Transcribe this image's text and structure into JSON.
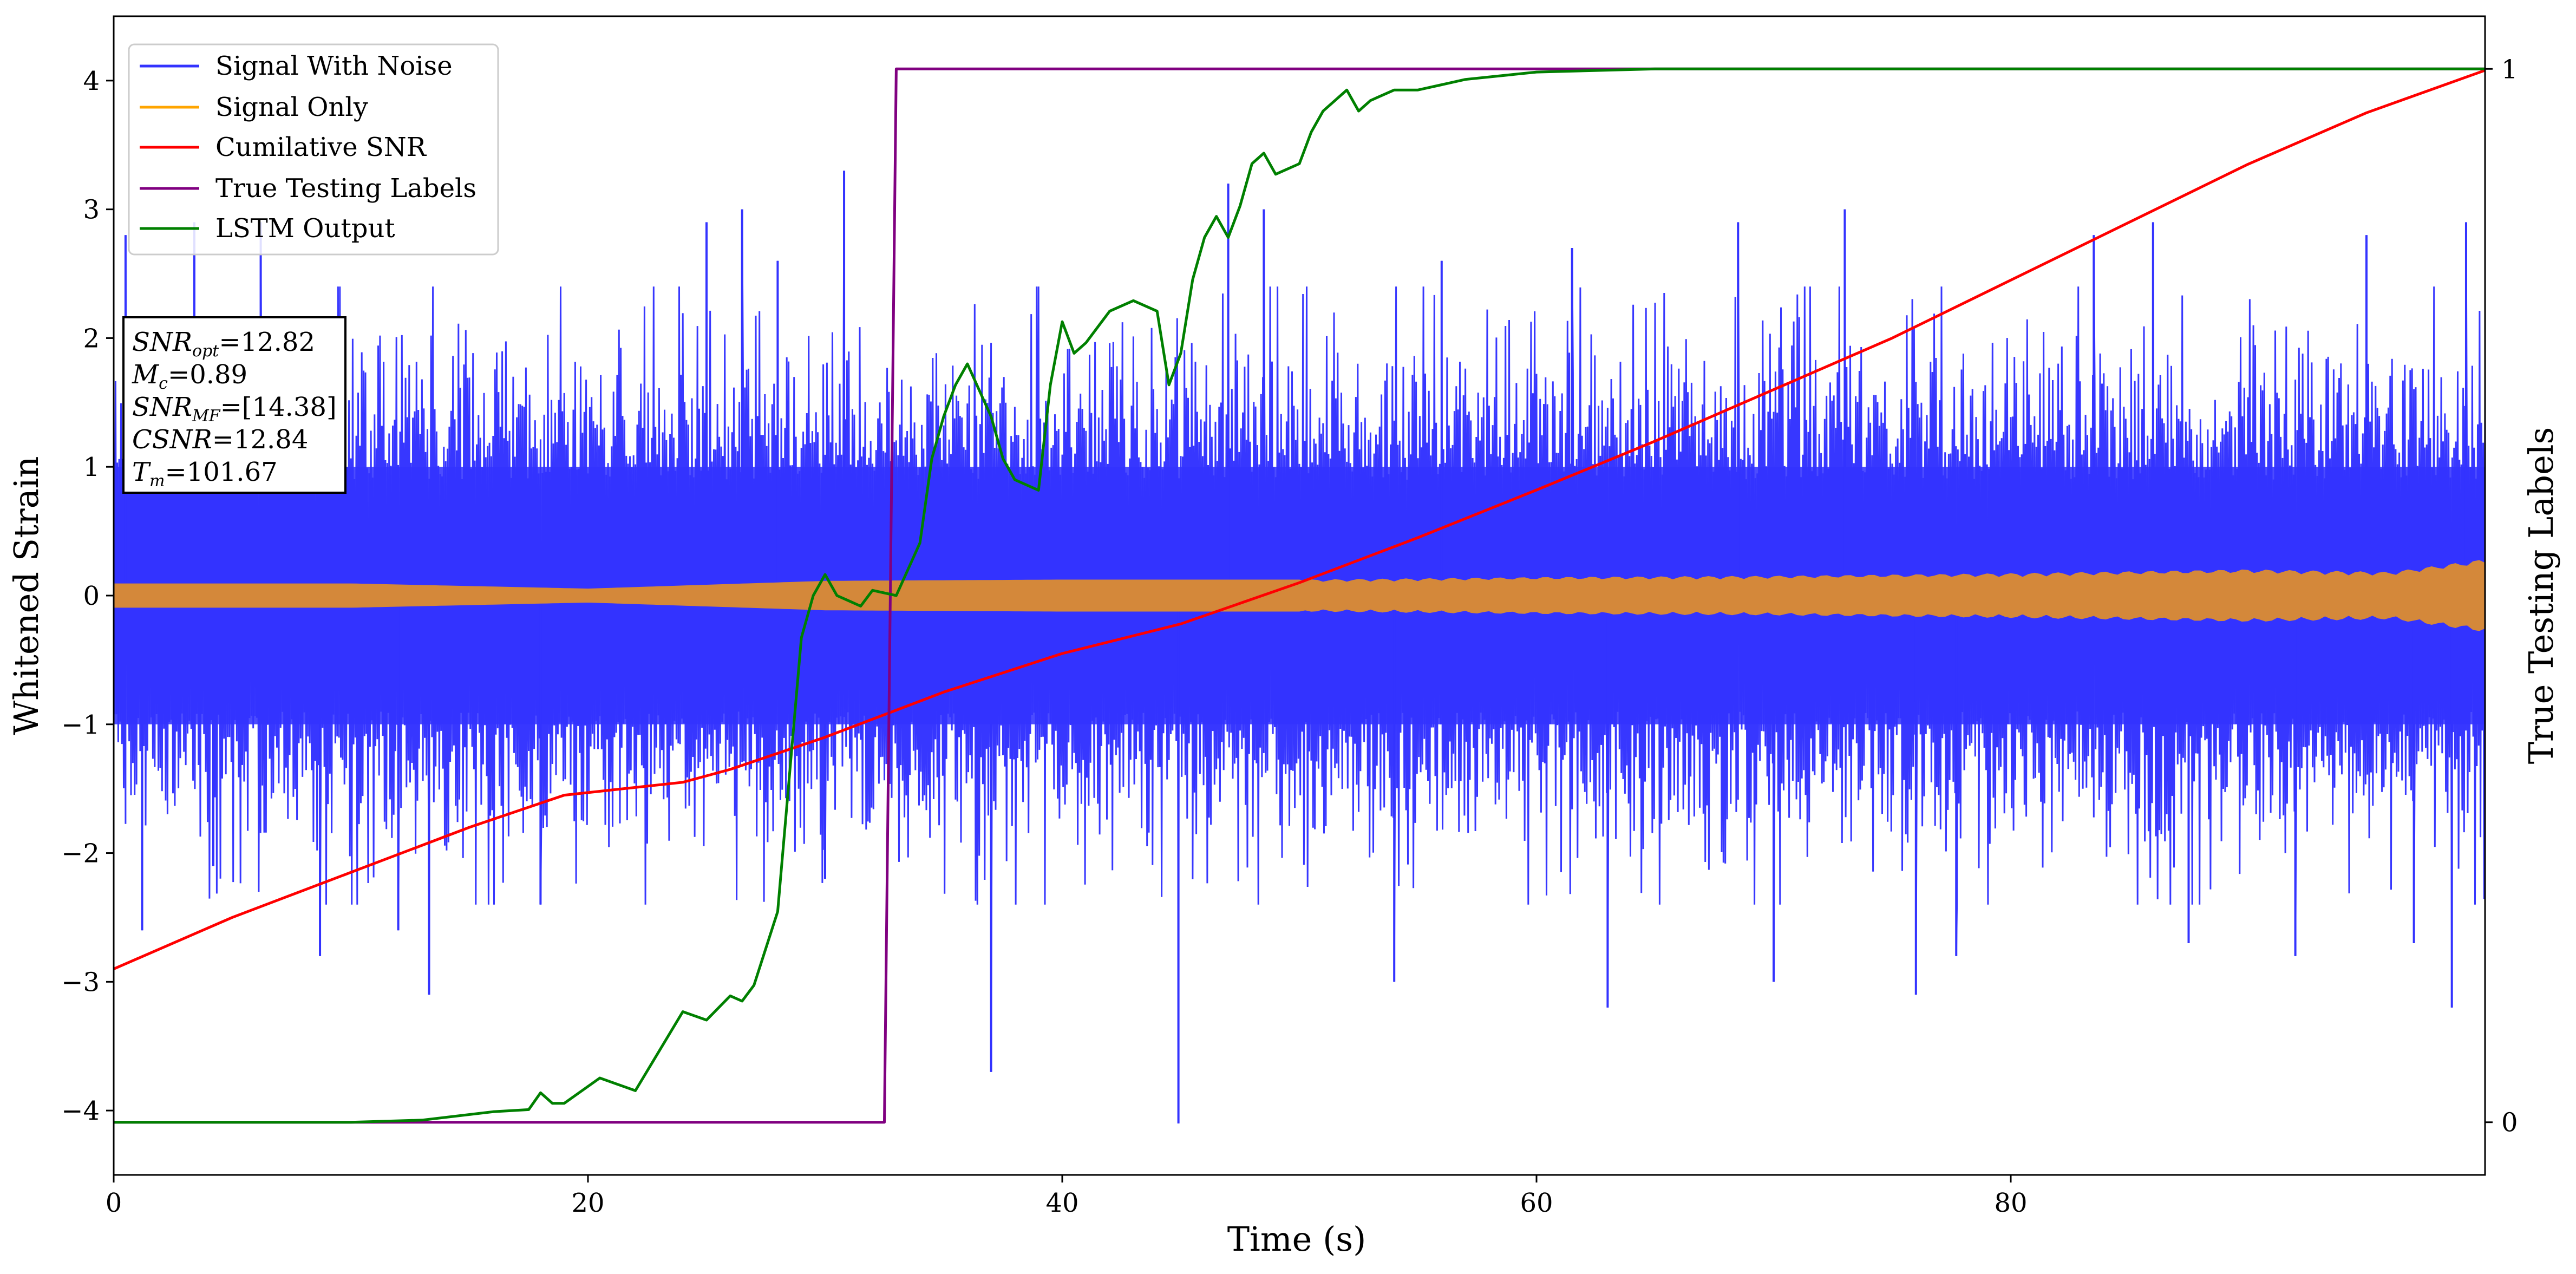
{
  "chart_data": {
    "type": "line",
    "xlabel": "Time (s)",
    "ylabel": "Whitened Strain",
    "y2label": "True Testing Labels",
    "xlim": [
      0,
      100
    ],
    "ylim": [
      -4.5,
      4.5
    ],
    "y2lim": [
      -0.05,
      1.05
    ],
    "x_ticks": [
      0,
      20,
      40,
      60,
      80
    ],
    "y_ticks": [
      -4,
      -3,
      -2,
      -1,
      0,
      1,
      2,
      3,
      4
    ],
    "y_tick_labels": [
      "−4",
      "−3",
      "−2",
      "−1",
      "0",
      "1",
      "2",
      "3",
      "4"
    ],
    "y2_ticks": [
      0,
      1
    ],
    "legend_position": "top-left",
    "series": [
      {
        "name": "Signal With Noise",
        "color": "#3333ff",
        "axis": "left",
        "style": "dense-noise",
        "typical_range": [
          -1.5,
          1.5
        ],
        "peaks": [
          {
            "x": 0.5,
            "y": 2.8
          },
          {
            "x": 1.2,
            "y": -2.6
          },
          {
            "x": 3.4,
            "y": 2.9
          },
          {
            "x": 4.2,
            "y": -2.1
          },
          {
            "x": 6.2,
            "y": 2.9
          },
          {
            "x": 8.7,
            "y": -2.8
          },
          {
            "x": 12.0,
            "y": -2.6
          },
          {
            "x": 13.3,
            "y": -3.1
          },
          {
            "x": 18.0,
            "y": -2.4
          },
          {
            "x": 25.0,
            "y": 2.9
          },
          {
            "x": 26.5,
            "y": 3.0
          },
          {
            "x": 28.0,
            "y": 2.6
          },
          {
            "x": 30.0,
            "y": -2.2
          },
          {
            "x": 30.8,
            "y": 3.3
          },
          {
            "x": 37.0,
            "y": -3.7
          },
          {
            "x": 44.9,
            "y": -4.1
          },
          {
            "x": 47.0,
            "y": 3.2
          },
          {
            "x": 48.5,
            "y": 3.0
          },
          {
            "x": 54.0,
            "y": -3.0
          },
          {
            "x": 56.0,
            "y": 2.6
          },
          {
            "x": 61.5,
            "y": 2.7
          },
          {
            "x": 63.0,
            "y": -3.2
          },
          {
            "x": 68.5,
            "y": 2.9
          },
          {
            "x": 70.0,
            "y": -3.0
          },
          {
            "x": 73.0,
            "y": 3.0
          },
          {
            "x": 76.0,
            "y": -3.1
          },
          {
            "x": 77.7,
            "y": -2.8
          },
          {
            "x": 83.5,
            "y": 2.8
          },
          {
            "x": 86.0,
            "y": 2.9
          },
          {
            "x": 87.5,
            "y": -2.7
          },
          {
            "x": 92.0,
            "y": -2.8
          },
          {
            "x": 95.0,
            "y": 2.8
          },
          {
            "x": 97.0,
            "y": -2.7
          },
          {
            "x": 98.6,
            "y": -3.2
          },
          {
            "x": 99.2,
            "y": 2.9
          }
        ]
      },
      {
        "name": "Signal Only",
        "color": "#d4883a",
        "axis": "left",
        "style": "chirp-band",
        "amplitude_envelope": {
          "x": [
            0,
            10,
            20,
            30,
            40,
            50,
            60,
            70,
            80,
            90,
            96,
            100
          ],
          "y": [
            0.09,
            0.09,
            0.05,
            0.11,
            0.12,
            0.12,
            0.14,
            0.15,
            0.17,
            0.2,
            0.18,
            0.28
          ]
        }
      },
      {
        "name": "Cumilative SNR",
        "color": "#ff0000",
        "axis": "left",
        "x": [
          0,
          5,
          10,
          15,
          19,
          24,
          26,
          30,
          35,
          40,
          45,
          50,
          55,
          60,
          65,
          70,
          75,
          80,
          85,
          90,
          95,
          100
        ],
        "y": [
          -2.9,
          -2.5,
          -2.15,
          -1.8,
          -1.55,
          -1.45,
          -1.35,
          -1.1,
          -0.75,
          -0.45,
          -0.22,
          0.1,
          0.45,
          0.82,
          1.2,
          1.6,
          2.0,
          2.45,
          2.9,
          3.35,
          3.75,
          4.08
        ]
      },
      {
        "name": "True Testing Labels",
        "color": "#800080",
        "axis": "right",
        "x": [
          0,
          32.5,
          33.0,
          100
        ],
        "y": [
          0,
          0,
          1,
          1
        ]
      },
      {
        "name": "LSTM Output",
        "color": "#008000",
        "axis": "right",
        "x": [
          0,
          10,
          13,
          16,
          17.5,
          18,
          18.5,
          19,
          19.5,
          20.5,
          22,
          24,
          25,
          26,
          26.5,
          27,
          28,
          29,
          29.5,
          30,
          30.5,
          31,
          31.5,
          32,
          33,
          34,
          34.5,
          35,
          35.5,
          36,
          37,
          37.5,
          38,
          39,
          39.5,
          40,
          40.5,
          41,
          42,
          43,
          44,
          44.5,
          45,
          45.5,
          46,
          46.5,
          47,
          47.5,
          48,
          48.5,
          49,
          50,
          50.5,
          51,
          52,
          52.5,
          53,
          54,
          55,
          56,
          57,
          60,
          65,
          70,
          80,
          100
        ],
        "y": [
          0,
          0,
          0.002,
          0.01,
          0.012,
          0.028,
          0.018,
          0.018,
          0.026,
          0.042,
          0.03,
          0.105,
          0.097,
          0.12,
          0.115,
          0.13,
          0.2,
          0.46,
          0.5,
          0.52,
          0.5,
          0.495,
          0.49,
          0.505,
          0.5,
          0.55,
          0.63,
          0.67,
          0.7,
          0.72,
          0.67,
          0.63,
          0.61,
          0.6,
          0.7,
          0.76,
          0.73,
          0.74,
          0.77,
          0.78,
          0.77,
          0.7,
          0.73,
          0.8,
          0.84,
          0.86,
          0.84,
          0.87,
          0.91,
          0.92,
          0.9,
          0.91,
          0.94,
          0.96,
          0.98,
          0.96,
          0.97,
          0.98,
          0.98,
          0.985,
          0.99,
          0.997,
          1.0,
          1.0,
          1.0,
          1.0
        ]
      }
    ],
    "info_box": [
      {
        "base": "SNR",
        "sub": "opt",
        "rest": "=12.82"
      },
      {
        "base": "M",
        "sub": "c",
        "rest": "=0.89"
      },
      {
        "base": "SNR",
        "sub": "MF",
        "rest": "=[14.38]"
      },
      {
        "base": "CSNR",
        "sub": "",
        "rest": "=12.84"
      },
      {
        "base": "T",
        "sub": "m",
        "rest": "=101.67"
      }
    ]
  }
}
